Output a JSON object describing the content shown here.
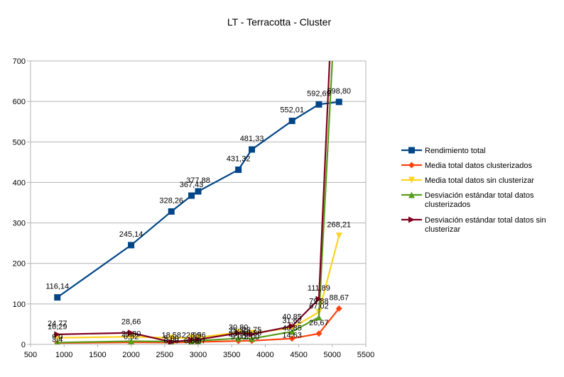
{
  "chart_data": {
    "type": "line",
    "title": "LT - Terracotta - Cluster",
    "xlabel": "",
    "ylabel": "",
    "xlim": [
      500,
      5500
    ],
    "ylim": [
      0,
      700
    ],
    "xticks": [
      500,
      1000,
      1500,
      2000,
      2500,
      3000,
      3500,
      4000,
      4500,
      5000,
      5500
    ],
    "yticks": [
      0,
      100,
      200,
      300,
      400,
      500,
      600,
      700
    ],
    "grid": "horizontal",
    "legend": "right",
    "series": [
      {
        "name": "Rendimiento total",
        "color": "#004586",
        "marker": "square",
        "x": [
          900,
          2000,
          2600,
          2900,
          3000,
          3600,
          3800,
          4400,
          4800,
          5100
        ],
        "values": [
          116.14,
          245.14,
          328.26,
          367.43,
          377.88,
          431.32,
          481.33,
          552.01,
          592.69,
          598.8
        ],
        "labels": [
          "116,14",
          "245,14",
          "328,26",
          "367,43",
          "377,88",
          "431,32",
          "481,33",
          "552,01",
          "592,69",
          "598,80"
        ]
      },
      {
        "name": "Media total datos clusterizados",
        "color": "#ff420e",
        "marker": "diamond",
        "x": [
          900,
          2000,
          2600,
          2900,
          3000,
          3600,
          3800,
          4400,
          4800,
          5100
        ],
        "values": [
          3.5,
          5.0,
          4.5,
          5.5,
          6.0,
          8.5,
          9.0,
          14.5,
          26.67,
          88.67
        ],
        "labels": [
          "",
          "",
          "",
          "",
          "",
          "",
          "",
          "",
          "26,67",
          "88,67"
        ]
      },
      {
        "name": "Media total datos sin clusterizar",
        "color": "#ffd320",
        "marker": "triangle-down",
        "x": [
          900,
          2000,
          2600,
          2900,
          3000,
          3600,
          3800,
          4400,
          4800,
          5100
        ],
        "values": [
          16.29,
          19.0,
          16.0,
          16.5,
          17.0,
          30.0,
          28.0,
          40.85,
          79.88,
          268.21
        ],
        "labels": [
          "16,29",
          "",
          "",
          "",
          "",
          "",
          "",
          "40,85",
          "79,88",
          "268,21"
        ]
      },
      {
        "name": "Desviación estándar total datos clusterizados",
        "color": "#579d1c",
        "marker": "triangle-up",
        "x": [
          900,
          2000,
          2600,
          2900,
          3000,
          3600,
          3800,
          4400,
          4800,
          5000
        ],
        "values": [
          4.5,
          8.0,
          7.0,
          8.0,
          9.0,
          15.0,
          14.0,
          31.62,
          67.02,
          700
        ],
        "labels": [
          "",
          "",
          "",
          "",
          "",
          "",
          "",
          "31,62",
          "67,02",
          ""
        ]
      },
      {
        "name": "Desviación estándar total datos sin clusterizar",
        "color": "#7e0021",
        "marker": "triangle-right",
        "x": [
          900,
          2000,
          2600,
          2900,
          3000,
          3600,
          3800,
          4400,
          4800,
          4960
        ],
        "values": [
          24.77,
          28.66,
          6.0,
          11.0,
          12.0,
          28.0,
          25.0,
          45.0,
          111.89,
          700
        ],
        "labels": [
          "24,77",
          "28,66",
          "",
          "",
          "",
          "",
          "",
          "",
          "111,89",
          ""
        ]
      }
    ],
    "extra_labels": [
      {
        "x": 900,
        "y": 12,
        "text": "9,0"
      },
      {
        "x": 900,
        "y": 6,
        "text": "3,4"
      },
      {
        "x": 2000,
        "y": 20,
        "text": "21,80"
      },
      {
        "x": 2000,
        "y": 13,
        "text": "6,52"
      },
      {
        "x": 2600,
        "y": 17,
        "text": "18,58"
      },
      {
        "x": 2600,
        "y": 9,
        "text": "5,00"
      },
      {
        "x": 2600,
        "y": 3,
        "text": "6,00"
      },
      {
        "x": 2900,
        "y": 17,
        "text": "22,99"
      },
      {
        "x": 2900,
        "y": 3,
        "text": "6,88"
      },
      {
        "x": 3000,
        "y": 17,
        "text": "8,56"
      },
      {
        "x": 3000,
        "y": 3,
        "text": "8,97"
      },
      {
        "x": 3600,
        "y": 36,
        "text": "30,80"
      },
      {
        "x": 3600,
        "y": 28,
        "text": "25,30"
      },
      {
        "x": 3600,
        "y": 20,
        "text": "23,70"
      },
      {
        "x": 3600,
        "y": 12,
        "text": "9,00"
      },
      {
        "x": 3800,
        "y": 30,
        "text": "23,75"
      },
      {
        "x": 3800,
        "y": 22,
        "text": "19,86"
      },
      {
        "x": 3800,
        "y": 12,
        "text": "8,00"
      },
      {
        "x": 4400,
        "y": 34,
        "text": "40,85"
      },
      {
        "x": 4400,
        "y": 17,
        "text": "14,63"
      }
    ]
  }
}
